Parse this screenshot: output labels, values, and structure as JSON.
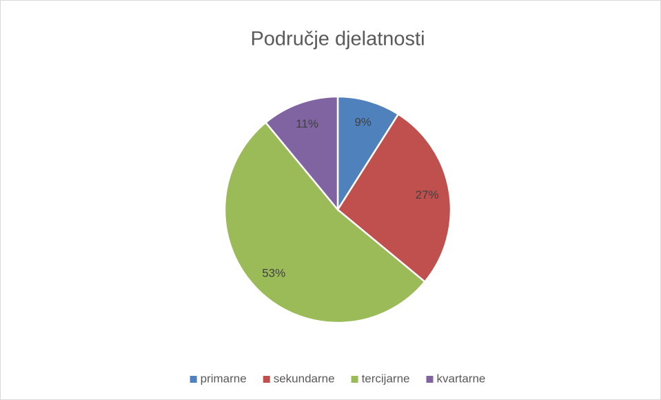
{
  "chart_data": {
    "type": "pie",
    "title": "Područje djelatnosti",
    "categories": [
      "primarne",
      "sekundarne",
      "tercijarne",
      "kvartarne"
    ],
    "values": [
      9,
      27,
      53,
      11
    ],
    "value_labels": [
      "9%",
      "27%",
      "53%",
      "11%"
    ],
    "colors": [
      "#4f81bd",
      "#c0504d",
      "#9bbb59",
      "#8064a2"
    ],
    "legend": "bottom"
  }
}
